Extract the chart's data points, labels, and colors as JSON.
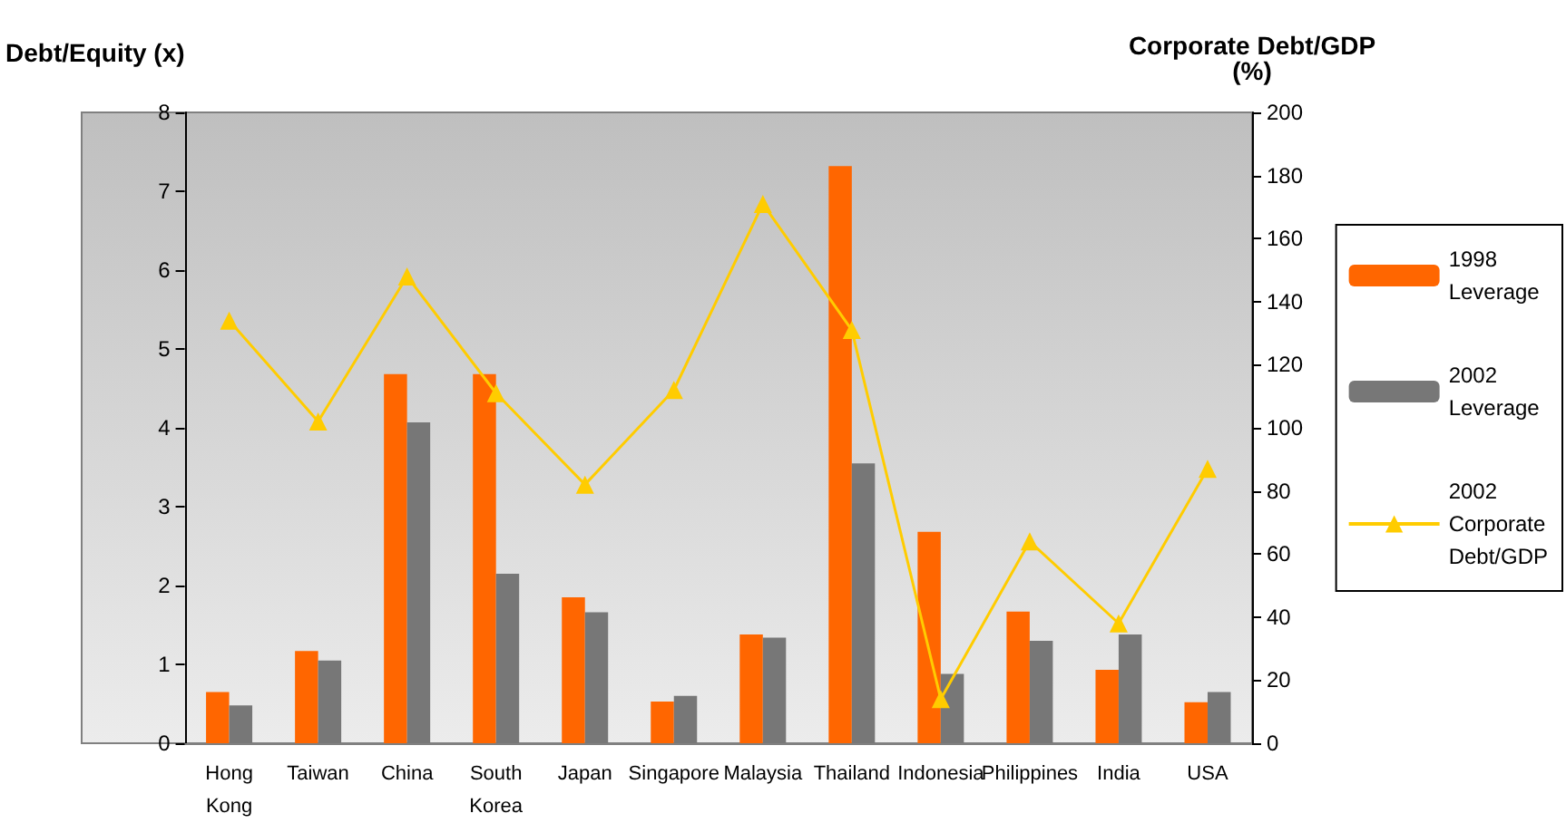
{
  "chart_data": {
    "type": "bar",
    "ylabel": "Debt/Equity (x)",
    "y2label": "Corporate Debt/GDP\n(%)",
    "categories": [
      "Hong\nKong",
      "Taiwan",
      "China",
      "South\nKorea",
      "Japan",
      "Singapore",
      "Malaysia",
      "Thailand",
      "Indonesia",
      "Philippines",
      "India",
      "USA"
    ],
    "series": [
      {
        "name": "1998\nLeverage",
        "color": "#ff6600",
        "values": [
          0.65,
          1.17,
          4.68,
          4.68,
          1.85,
          0.53,
          1.38,
          7.32,
          2.68,
          1.67,
          0.93,
          0.52
        ]
      },
      {
        "name": "2002\nLeverage",
        "color": "#777777",
        "values": [
          0.48,
          1.05,
          4.07,
          2.15,
          1.66,
          0.6,
          1.34,
          3.55,
          0.88,
          1.3,
          1.38,
          0.65
        ]
      },
      {
        "name": "2002\nCorporate\nDebt/GDP",
        "type": "line",
        "axis": "y2",
        "color": "#ffcc00",
        "marker": "triangle",
        "values": [
          134,
          102,
          148,
          111,
          82,
          112,
          171,
          131,
          14,
          64,
          38,
          87
        ]
      }
    ],
    "ylim": [
      0,
      8
    ],
    "yticks": [
      0,
      1,
      2,
      3,
      4,
      5,
      6,
      7,
      8
    ],
    "y2lim": [
      0,
      200
    ],
    "y2ticks": [
      0,
      20,
      40,
      60,
      80,
      100,
      120,
      140,
      160,
      180,
      200
    ],
    "grid": false,
    "legend": "right"
  }
}
